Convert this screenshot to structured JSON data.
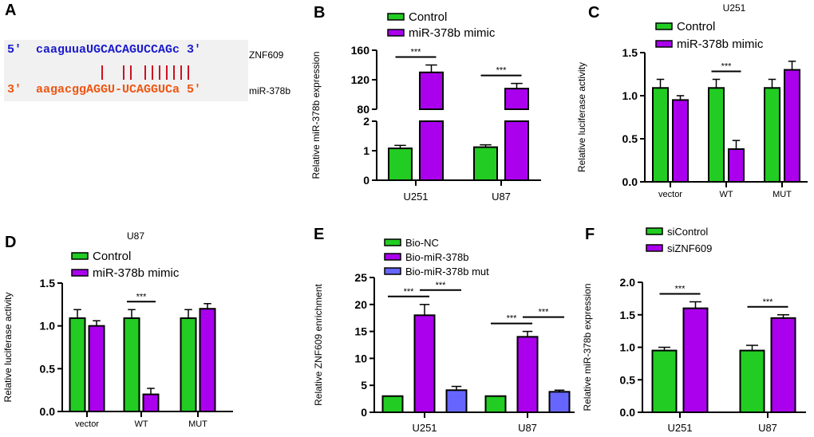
{
  "panel_a": {
    "label": "A",
    "top_seq": "5'  caaguuaUGCACAGUCCAGc 3'",
    "top_name": "ZNF609",
    "bottom_seq": "3'  aagacggAGGU-UCAGGUCa 5'",
    "bottom_name": "miR-378b",
    "top_color": "#1a1acc",
    "bottom_color": "#ee5511",
    "pair_color": "#cc1122"
  },
  "colors": {
    "green": "#22cc22",
    "purple": "#aa00ee",
    "blue": "#6666ff"
  },
  "chart_data": [
    {
      "panel": "B",
      "type": "bar",
      "title": "",
      "ylabel": "Relative miR-378b expression",
      "categories": [
        "U251",
        "U87"
      ],
      "series": [
        {
          "name": "Control",
          "color": "#22cc22",
          "values": [
            1.08,
            1.12
          ],
          "errors": [
            0.1,
            0.08
          ]
        },
        {
          "name": " miR-378b mimic",
          "color": "#aa00ee",
          "values": [
            130,
            108
          ],
          "errors": [
            10,
            7
          ]
        }
      ],
      "broken_axis": {
        "lower": [
          0,
          2
        ],
        "upper": [
          80,
          160
        ]
      },
      "yticks_lower": [
        "0",
        "1",
        "2"
      ],
      "yticks_upper": [
        "80",
        "120",
        "160"
      ],
      "significance": [
        {
          "category": 0,
          "label": "***"
        },
        {
          "category": 1,
          "label": "***"
        }
      ]
    },
    {
      "panel": "C",
      "type": "bar",
      "title": "U251",
      "ylabel": "Relative luciferase activity",
      "categories": [
        "vector",
        "WT",
        "MUT"
      ],
      "series": [
        {
          "name": "Control",
          "color": "#22cc22",
          "values": [
            1.09,
            1.09,
            1.09
          ],
          "errors": [
            0.1,
            0.1,
            0.1
          ]
        },
        {
          "name": "miR-378b mimic",
          "color": "#aa00ee",
          "values": [
            0.95,
            0.38,
            1.3
          ],
          "errors": [
            0.05,
            0.1,
            0.1
          ]
        }
      ],
      "ylim": [
        0,
        1.5
      ],
      "yticks": [
        "0.0",
        "0.5",
        "1.0",
        "1.5"
      ],
      "significance": [
        {
          "category": 1,
          "label": "***"
        }
      ]
    },
    {
      "panel": "D",
      "type": "bar",
      "title": "U87",
      "ylabel": "Relative luciferase activity",
      "categories": [
        "vector",
        "WT",
        "MUT"
      ],
      "series": [
        {
          "name": "Control",
          "color": "#22cc22",
          "values": [
            1.09,
            1.09,
            1.09
          ],
          "errors": [
            0.1,
            0.1,
            0.1
          ]
        },
        {
          "name": "miR-378b mimic",
          "color": "#aa00ee",
          "values": [
            1.0,
            0.2,
            1.2
          ],
          "errors": [
            0.06,
            0.07,
            0.06
          ]
        }
      ],
      "ylim": [
        0,
        1.5
      ],
      "yticks": [
        "0.0",
        "0.5",
        "1.0",
        "1.5"
      ],
      "significance": [
        {
          "category": 1,
          "label": "***"
        }
      ]
    },
    {
      "panel": "E",
      "type": "bar",
      "title": "",
      "ylabel": "Relative ZNF609 enrichment",
      "categories": [
        "U251",
        "U87"
      ],
      "series": [
        {
          "name": "Bio-NC",
          "color": "#22cc22",
          "values": [
            3,
            3
          ],
          "errors": [
            0,
            0
          ]
        },
        {
          "name": "Bio-miR-378b",
          "color": "#aa00ee",
          "values": [
            18,
            14
          ],
          "errors": [
            2,
            1
          ]
        },
        {
          "name": "Bio-miR-378b mut",
          "color": "#6666ff",
          "values": [
            4.1,
            3.8
          ],
          "errors": [
            0.7,
            0.3
          ]
        }
      ],
      "ylim": [
        0,
        25
      ],
      "yticks": [
        "0",
        "5",
        "10",
        "15",
        "20",
        "25"
      ],
      "significance": [
        {
          "category": 0,
          "label": "***",
          "pair": [
            0,
            1
          ]
        },
        {
          "category": 0,
          "label": "***",
          "pair": [
            1,
            2
          ]
        },
        {
          "category": 1,
          "label": "***",
          "pair": [
            0,
            1
          ]
        },
        {
          "category": 1,
          "label": "***",
          "pair": [
            1,
            2
          ]
        }
      ]
    },
    {
      "panel": "F",
      "type": "bar",
      "title": "",
      "ylabel": "Relative miR-378b expression",
      "categories": [
        "U251",
        "U87"
      ],
      "series": [
        {
          "name": "siControl",
          "color": "#22cc22",
          "values": [
            0.95,
            0.95
          ],
          "errors": [
            0.05,
            0.08
          ]
        },
        {
          "name": "siZNF609",
          "color": "#aa00ee",
          "values": [
            1.6,
            1.45
          ],
          "errors": [
            0.1,
            0.05
          ]
        }
      ],
      "ylim": [
        0,
        2
      ],
      "yticks": [
        "0.0",
        "0.5",
        "1.0",
        "1.5",
        "2.0"
      ],
      "significance": [
        {
          "category": 0,
          "label": "***"
        },
        {
          "category": 1,
          "label": "***"
        }
      ]
    }
  ]
}
